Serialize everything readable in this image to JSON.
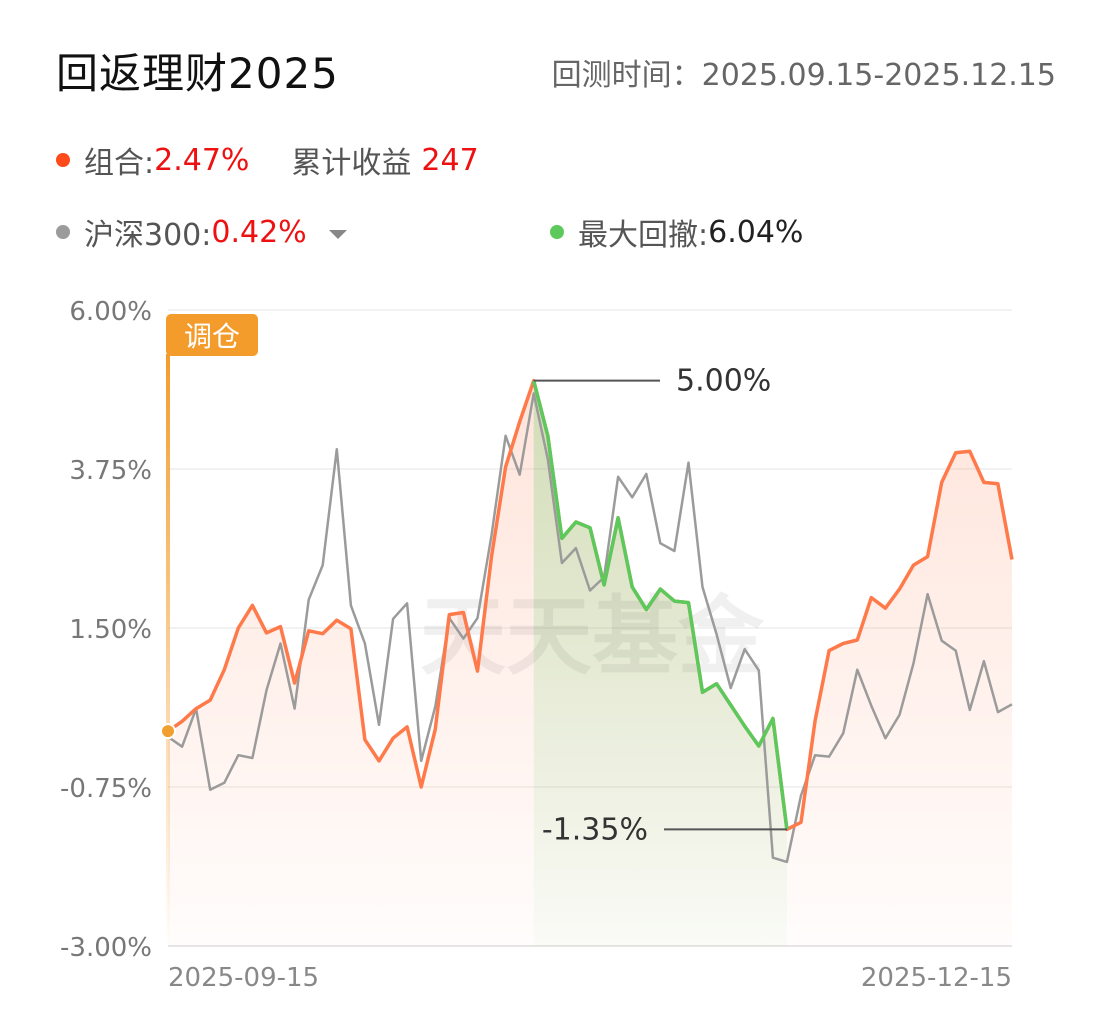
{
  "header": {
    "title": "回返理财2025",
    "period_label": "回测时间：",
    "period_value": "2025.09.15-2025.12.15"
  },
  "legend": {
    "portfolio_label": "组合:",
    "portfolio_value": "2.47%",
    "cum_label": "累计收益",
    "cum_value": "247",
    "benchmark_label": "沪深300:",
    "benchmark_value": "0.42%",
    "drawdown_label": "最大回撤:",
    "drawdown_value": "6.04%"
  },
  "colors": {
    "portfolio": "#ff7a4a",
    "portfolio_dot": "#ff4a1a",
    "benchmark": "#9b9b9b",
    "drawdown": "#5bc95b",
    "rebalance": "#f39c2c",
    "positive": "#ee1111"
  },
  "chart_data": {
    "type": "line",
    "x_start_label": "2025-09-15",
    "x_end_label": "2025-12-15",
    "ylim": [
      -3.0,
      6.0
    ],
    "y_ticks": [
      "6.00%",
      "3.75%",
      "1.50%",
      "-0.75%",
      "-3.00%"
    ],
    "y_tick_values": [
      6.0,
      3.75,
      1.5,
      -0.75,
      -3.0
    ],
    "grid": true,
    "annotations": {
      "rebalance_label": "调仓",
      "peak_label": "5.00%",
      "trough_label": "-1.35%"
    },
    "watermark": "天天基金",
    "drawdown_range": [
      26,
      44
    ],
    "series": [
      {
        "name": "组合",
        "values": [
          0.04,
          0.18,
          0.36,
          0.48,
          0.91,
          1.5,
          1.82,
          1.43,
          1.52,
          0.72,
          1.46,
          1.42,
          1.61,
          1.49,
          -0.08,
          -0.38,
          -0.06,
          0.1,
          -0.75,
          0.07,
          1.69,
          1.72,
          0.89,
          2.51,
          3.78,
          4.42,
          5.0,
          4.22,
          2.77,
          3.0,
          2.92,
          2.11,
          3.06,
          2.08,
          1.76,
          2.05,
          1.88,
          1.86,
          0.59,
          0.71,
          0.41,
          0.11,
          -0.17,
          0.22,
          -1.35,
          -1.25,
          0.19,
          1.18,
          1.28,
          1.33,
          1.93,
          1.78,
          2.05,
          2.39,
          2.51,
          3.56,
          3.98,
          4.0,
          3.56,
          3.54,
          2.47
        ]
      },
      {
        "name": "沪深300",
        "values": [
          -0.04,
          -0.18,
          0.36,
          -0.79,
          -0.69,
          -0.3,
          -0.34,
          0.62,
          1.28,
          0.36,
          1.9,
          2.39,
          4.03,
          1.82,
          1.28,
          0.13,
          1.63,
          1.85,
          -0.38,
          0.39,
          1.64,
          1.35,
          1.64,
          2.81,
          4.22,
          3.67,
          4.82,
          3.89,
          2.42,
          2.63,
          2.03,
          2.22,
          3.64,
          3.35,
          3.68,
          2.7,
          2.59,
          3.84,
          2.08,
          1.41,
          0.65,
          1.2,
          0.9,
          -1.75,
          -1.81,
          -0.87,
          -0.3,
          -0.32,
          0.01,
          0.91,
          0.4,
          -0.06,
          0.27,
          1.0,
          1.98,
          1.32,
          1.18,
          0.34,
          1.03,
          0.31,
          0.42
        ]
      }
    ]
  }
}
